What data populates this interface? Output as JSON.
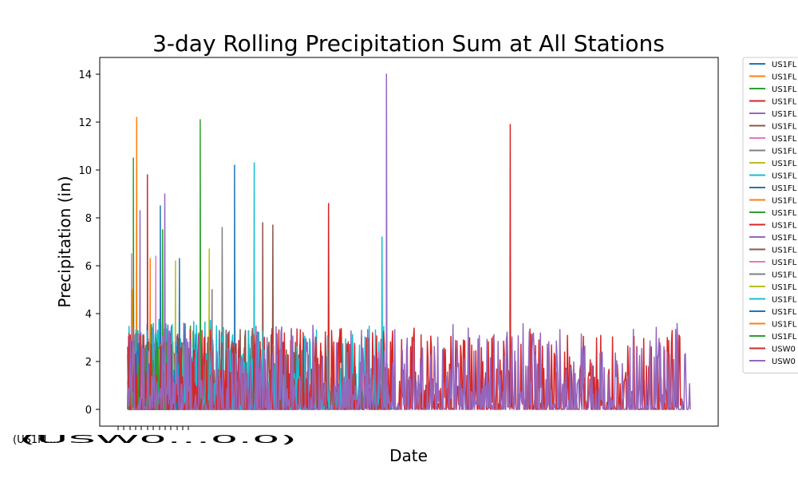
{
  "chart_data": {
    "type": "line",
    "title": "3-day Rolling Precipitation Sum at All Stations",
    "xlabel": "Date",
    "ylabel": "Precipitation (in)",
    "ylim": [
      -0.7,
      14.7
    ],
    "y_ticks": [
      0,
      2,
      4,
      6,
      8,
      10,
      12,
      14
    ],
    "x_tick_labels_text": "(US1FL…",
    "x_tick_labels_overlap": "(USW0…0.0)",
    "legend_position": "outside-right",
    "grid": false,
    "series": [
      {
        "name": "US1FL",
        "color": "#1f77b4",
        "start": 0.0,
        "end": 0.19,
        "peak": {
          "x": 0.19,
          "y": 10.2
        },
        "scale": 3.6
      },
      {
        "name": "US1FL",
        "color": "#ff7f0e",
        "start": 0.0,
        "end": 0.03,
        "peak": {
          "x": 0.016,
          "y": 12.2
        },
        "scale": 4.0
      },
      {
        "name": "US1FL",
        "color": "#2ca02c",
        "start": 0.0,
        "end": 0.02,
        "peak": {
          "x": 0.01,
          "y": 10.5
        },
        "scale": 4.0
      },
      {
        "name": "US1FL",
        "color": "#d62728",
        "start": 0.0,
        "end": 0.04,
        "peak": {
          "x": 0.035,
          "y": 9.8
        },
        "scale": 3.8
      },
      {
        "name": "US1FL",
        "color": "#9467bd",
        "start": 0.0,
        "end": 0.08,
        "peak": {
          "x": 0.066,
          "y": 9.0
        },
        "scale": 3.6
      },
      {
        "name": "US1FL",
        "color": "#8c564b",
        "start": 0.0,
        "end": 0.3,
        "peak": {
          "x": 0.24,
          "y": 7.8
        },
        "scale": 3.4
      },
      {
        "name": "US1FL",
        "color": "#e377c2",
        "start": 0.0,
        "end": 0.03,
        "peak": {
          "x": 0.007,
          "y": 6.5
        },
        "scale": 3.2
      },
      {
        "name": "US1FL",
        "color": "#7f7f7f",
        "start": 0.0,
        "end": 0.17,
        "peak": {
          "x": 0.168,
          "y": 7.6
        },
        "scale": 3.4
      },
      {
        "name": "US1FL",
        "color": "#bcbd22",
        "start": 0.0,
        "end": 0.15,
        "peak": {
          "x": 0.145,
          "y": 6.7
        },
        "scale": 3.2
      },
      {
        "name": "US1FL",
        "color": "#17becf",
        "start": 0.0,
        "end": 0.23,
        "peak": {
          "x": 0.225,
          "y": 10.3
        },
        "scale": 3.8
      },
      {
        "name": "US1FL",
        "color": "#1f77b4",
        "start": 0.0,
        "end": 0.07,
        "peak": {
          "x": 0.058,
          "y": 8.5
        },
        "scale": 3.6
      },
      {
        "name": "US1FL",
        "color": "#ff7f0e",
        "start": 0.0,
        "end": 0.05,
        "peak": {
          "x": 0.04,
          "y": 6.3
        },
        "scale": 3.2
      },
      {
        "name": "US1FL",
        "color": "#2ca02c",
        "start": 0.0,
        "end": 0.13,
        "peak": {
          "x": 0.129,
          "y": 12.1
        },
        "scale": 3.6
      },
      {
        "name": "US1FL",
        "color": "#d62728",
        "start": 0.0,
        "end": 0.47,
        "peak": {
          "x": 0.357,
          "y": 8.6
        },
        "scale": 3.4
      },
      {
        "name": "US1FL",
        "color": "#9467bd",
        "start": 0.0,
        "end": 0.12,
        "peak": {
          "x": 0.022,
          "y": 8.3
        },
        "scale": 3.4
      },
      {
        "name": "US1FL",
        "color": "#8c564b",
        "start": 0.0,
        "end": 0.33,
        "peak": {
          "x": 0.258,
          "y": 7.7
        },
        "scale": 3.4
      },
      {
        "name": "US1FL",
        "color": "#e377c2",
        "start": 0.0,
        "end": 0.06,
        "peak": {
          "x": 0.05,
          "y": 6.4
        },
        "scale": 3.0
      },
      {
        "name": "US1FL",
        "color": "#7f7f7f",
        "start": 0.0,
        "end": 0.16,
        "peak": {
          "x": 0.15,
          "y": 5.0
        },
        "scale": 3.0
      },
      {
        "name": "US1FL",
        "color": "#bcbd22",
        "start": 0.0,
        "end": 0.12,
        "peak": {
          "x": 0.085,
          "y": 6.2
        },
        "scale": 3.0
      },
      {
        "name": "US1FL",
        "color": "#17becf",
        "start": 0.0,
        "end": 0.47,
        "peak": {
          "x": 0.452,
          "y": 7.2
        },
        "scale": 3.6
      },
      {
        "name": "US1FL",
        "color": "#1f77b4",
        "start": 0.0,
        "end": 0.1,
        "peak": {
          "x": 0.092,
          "y": 6.3
        },
        "scale": 3.0
      },
      {
        "name": "US1FL",
        "color": "#ff7f0e",
        "start": 0.0,
        "end": 0.02,
        "peak": {
          "x": 0.008,
          "y": 5.0
        },
        "scale": 3.0
      },
      {
        "name": "US1FL",
        "color": "#2ca02c",
        "start": 0.0,
        "end": 0.07,
        "peak": {
          "x": 0.062,
          "y": 7.5
        },
        "scale": 3.2
      },
      {
        "name": "USW0",
        "color": "#d62728",
        "start": 0.0,
        "end": 0.99,
        "peak": {
          "x": 0.68,
          "y": 11.9
        },
        "scale": 3.4
      },
      {
        "name": "USW0",
        "color": "#9467bd",
        "start": 0.0,
        "end": 1.0,
        "peak": {
          "x": 0.46,
          "y": 14.0
        },
        "scale": 3.6
      }
    ]
  }
}
